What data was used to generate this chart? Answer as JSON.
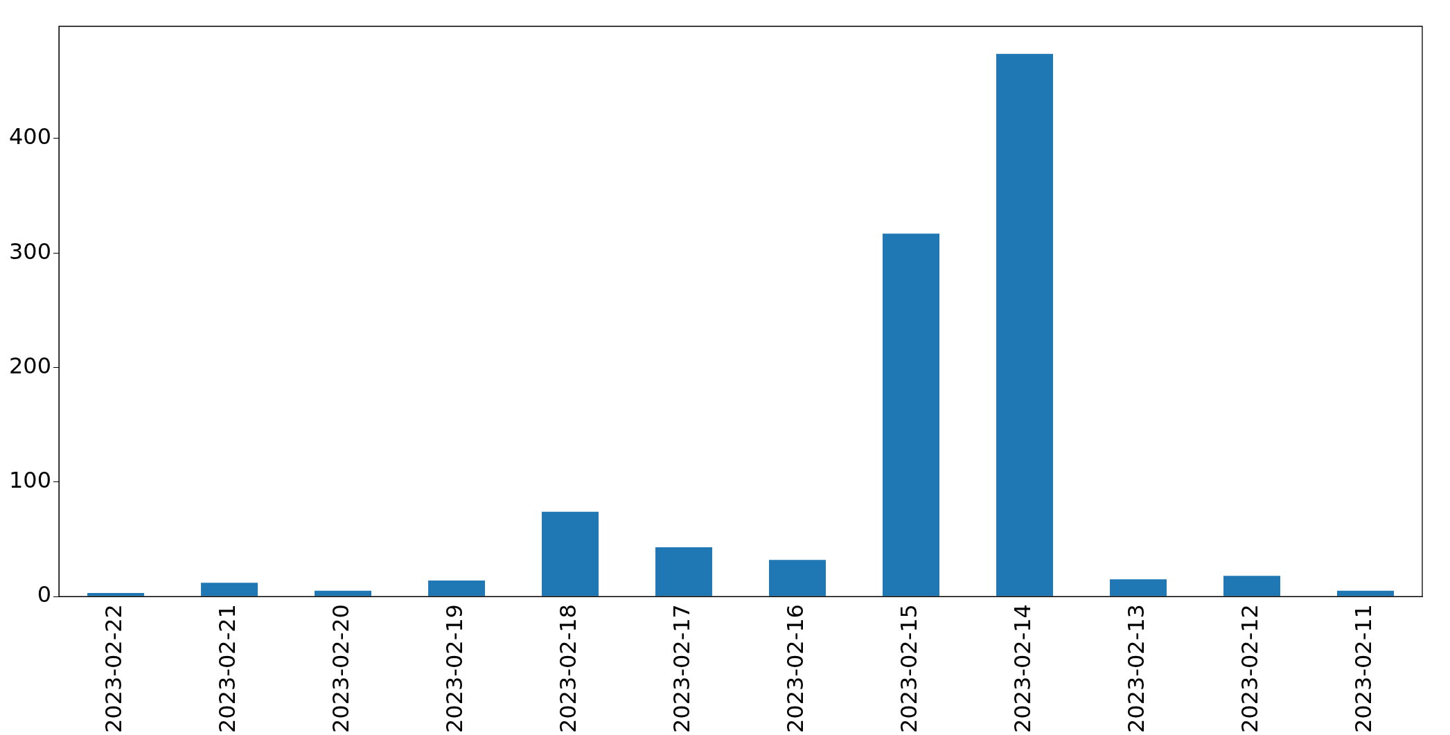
{
  "chart_data": {
    "type": "bar",
    "categories": [
      "2023-02-22",
      "2023-02-21",
      "2023-02-20",
      "2023-02-19",
      "2023-02-18",
      "2023-02-17",
      "2023-02-16",
      "2023-02-15",
      "2023-02-14",
      "2023-02-13",
      "2023-02-12",
      "2023-02-11"
    ],
    "values": [
      3,
      12,
      5,
      14,
      74,
      43,
      32,
      317,
      474,
      15,
      18,
      5
    ],
    "color": "#1f77b4",
    "ylim": [
      0,
      498
    ],
    "yticks": [
      0,
      100,
      200,
      300,
      400
    ],
    "grid": false,
    "legend": false
  }
}
